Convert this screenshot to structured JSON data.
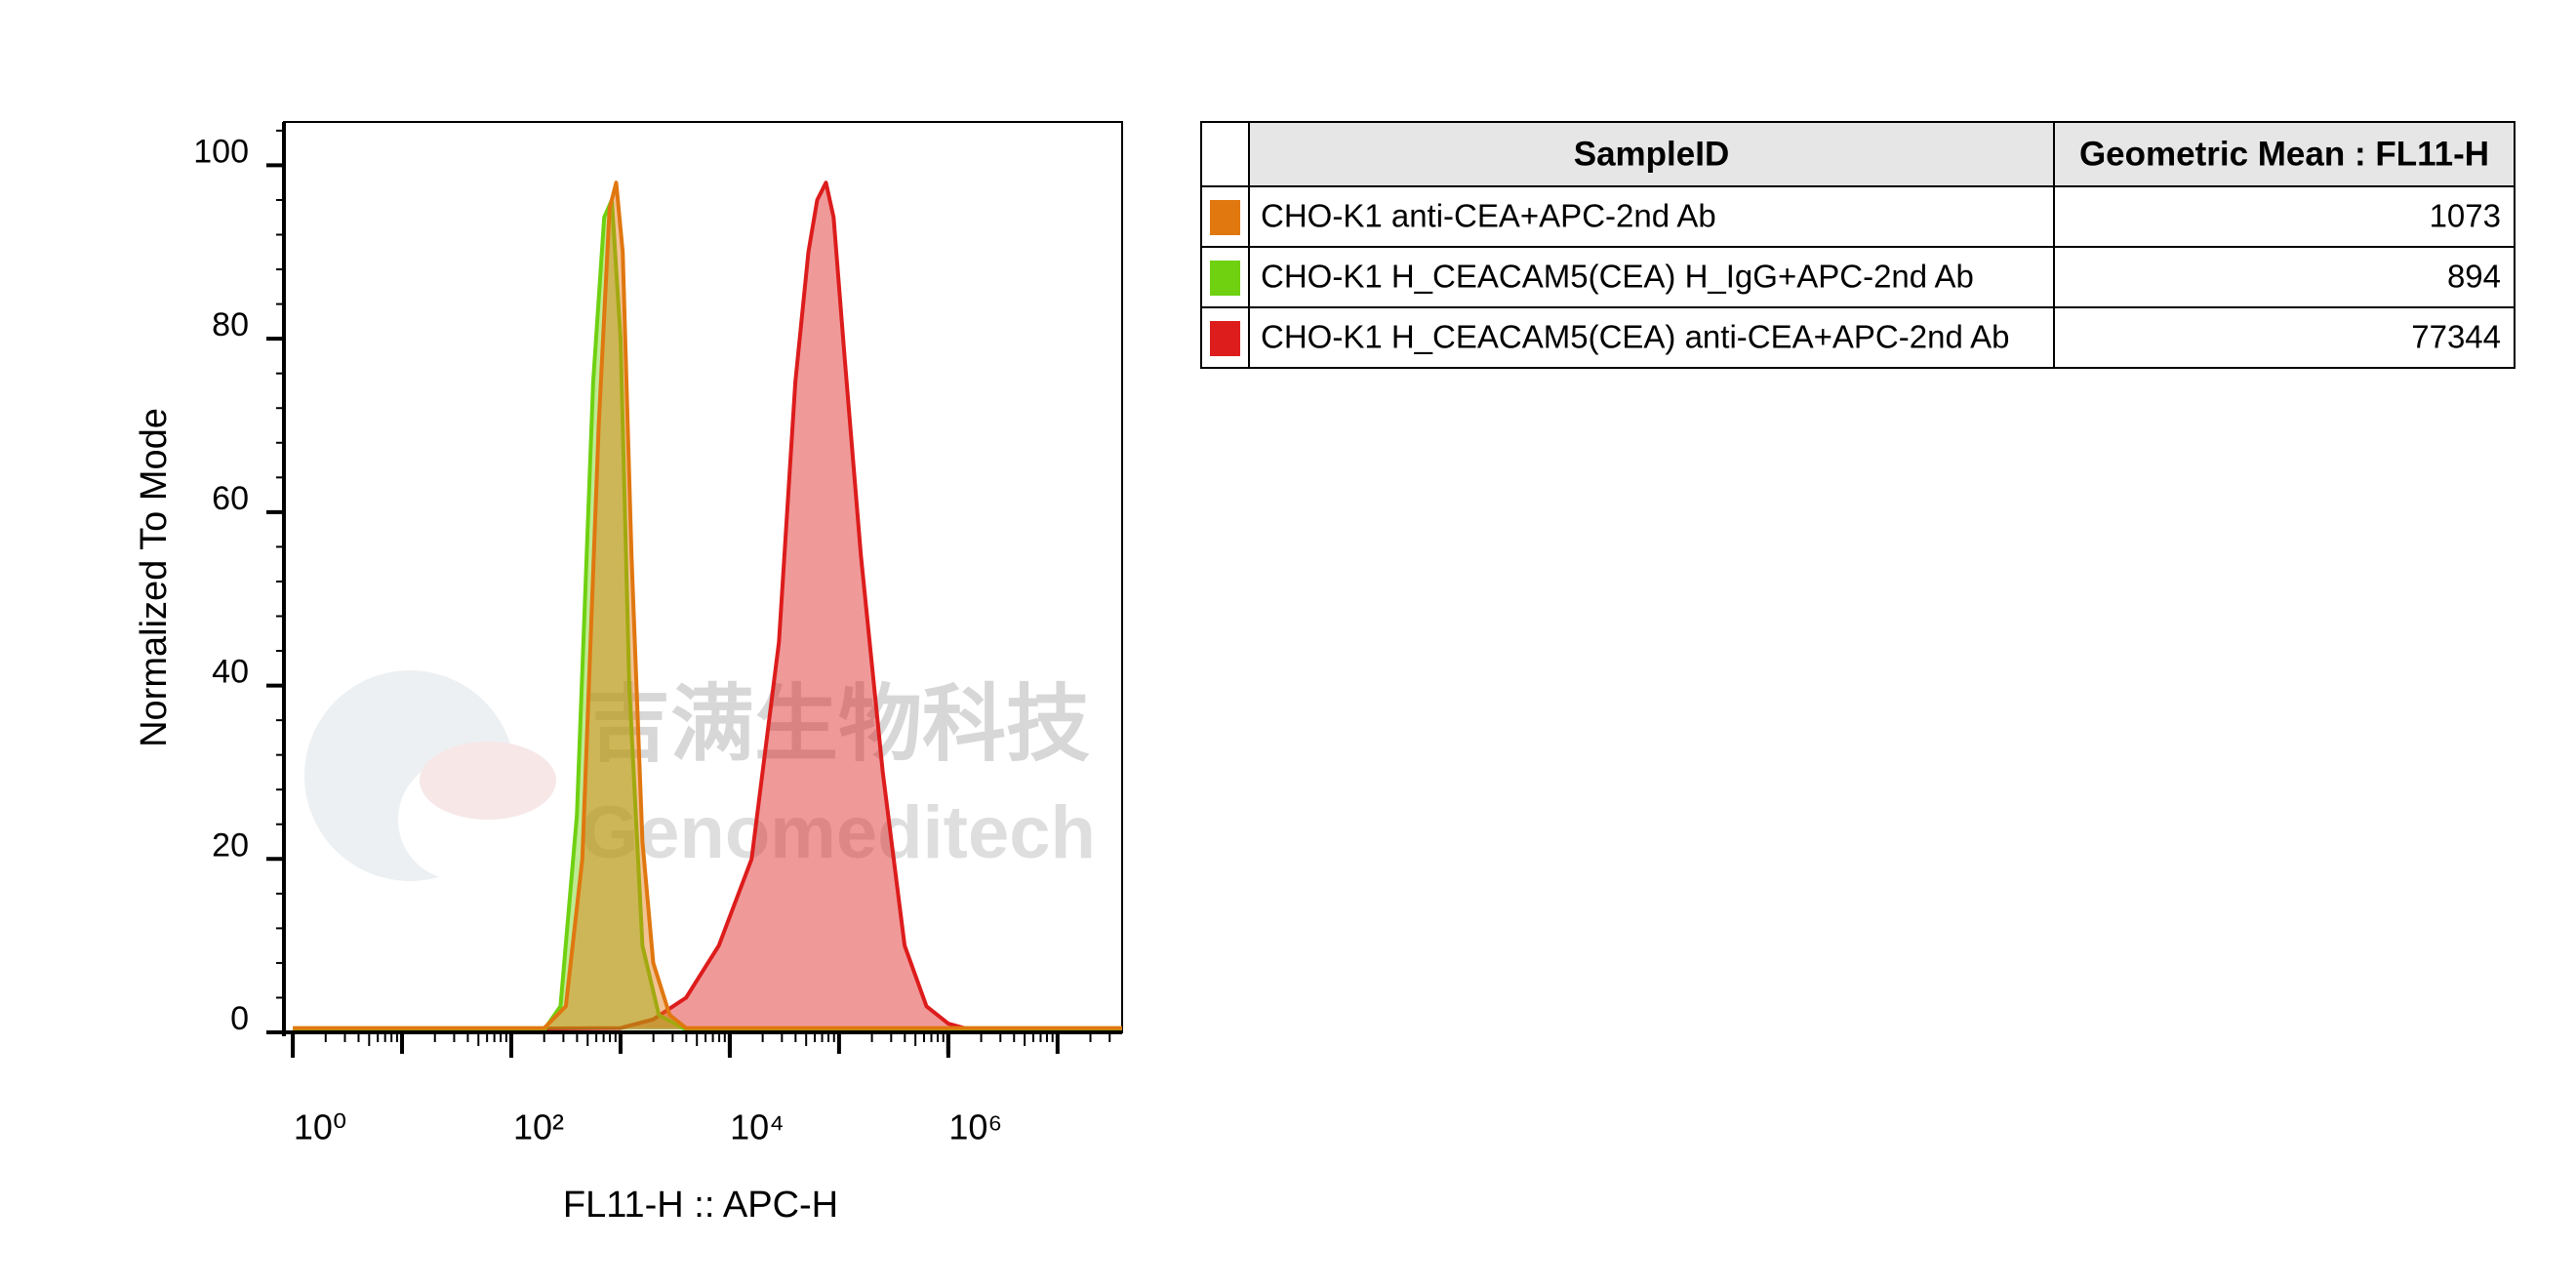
{
  "chart_data": {
    "type": "area",
    "x_label": "FL11-H :: APC-H",
    "y_label": "Normalized To Mode",
    "xscale": "log",
    "xlim": [
      0.83,
      39000000
    ],
    "xticks": [
      {
        "value": 1,
        "label": "10⁰"
      },
      {
        "value": 100,
        "label": "10²"
      },
      {
        "value": 10000,
        "label": "10⁴"
      },
      {
        "value": 1000000,
        "label": "10⁶"
      }
    ],
    "ylim": [
      0,
      105
    ],
    "yticks": [
      0,
      20,
      40,
      60,
      80,
      100
    ],
    "series": [
      {
        "name": "CHO-K1 H_CEACAM5(CEA) anti-CEA+APC-2nd Ab",
        "color": "#dd1c1c",
        "x": [
          1,
          1000,
          1995,
          3981,
          7943,
          15849,
          28184,
          39811,
          52481,
          63096,
          75858,
          89125,
          112202,
          158489,
          251189,
          398107,
          630957,
          1000000,
          1584893,
          39000000
        ],
        "values": [
          0.3,
          0.5,
          1.5,
          4,
          10,
          20,
          45,
          75,
          90,
          96,
          98,
          94,
          78,
          55,
          30,
          10,
          3,
          1,
          0.3,
          0.3
        ]
      },
      {
        "name": "CHO-K1 H_CEACAM5(CEA) H_IgG+APC-2nd Ab",
        "color": "#6fd110",
        "x": [
          1,
          200,
          282,
          398,
          562,
          708,
          832,
          1000,
          1202,
          1585,
          2239,
          3981,
          39000000
        ],
        "values": [
          0.3,
          0.3,
          3,
          25,
          75,
          94,
          96,
          80,
          40,
          10,
          2,
          0.3,
          0.3
        ]
      },
      {
        "name": "CHO-K1 anti-CEA+APC-2nd Ab",
        "color": "#e0770f",
        "x": [
          1,
          200,
          316,
          447,
          631,
          794,
          912,
          1047,
          1259,
          1585,
          1995,
          2818,
          3981,
          39000000
        ],
        "values": [
          0.5,
          0.5,
          3,
          20,
          70,
          95,
          98,
          90,
          55,
          22,
          8,
          2,
          0.5,
          0.5
        ]
      }
    ],
    "table": {
      "columns": [
        "SampleID",
        "Geometric Mean : FL11-H"
      ],
      "order": [
        2,
        1,
        0
      ],
      "values": [
        77344,
        894,
        1073
      ]
    },
    "watermark": [
      "吉满生物科技",
      "Genomeditech"
    ]
  }
}
